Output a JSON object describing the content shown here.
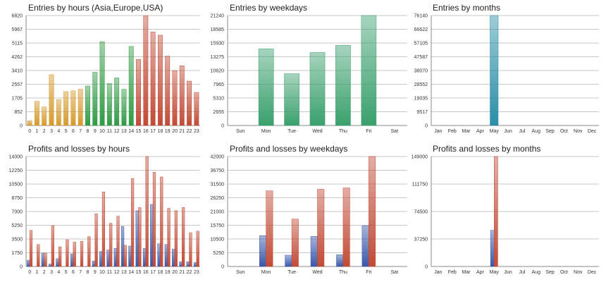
{
  "colors": {
    "orange": "#d69a2c",
    "green": "#2f9a43",
    "red": "#c24a35",
    "teal_green": "#3aa06d",
    "teal": "#2a8ea8",
    "blue": "#3a58a8",
    "grid": "#c8c8c8"
  },
  "chart_data": [
    {
      "type": "bar",
      "title": "Entries by hours (Asia,Europe,USA)",
      "categories": [
        "0",
        "1",
        "2",
        "3",
        "4",
        "5",
        "6",
        "7",
        "8",
        "9",
        "10",
        "11",
        "12",
        "13",
        "14",
        "15",
        "16",
        "17",
        "18",
        "19",
        "20",
        "21",
        "22",
        "23"
      ],
      "values": [
        300,
        1500,
        1150,
        3150,
        1600,
        2100,
        2150,
        2250,
        2450,
        3300,
        5200,
        2600,
        2950,
        2250,
        4900,
        4100,
        6800,
        5800,
        5600,
        4300,
        3400,
        3700,
        2750,
        2050
      ],
      "bar_colors": [
        "orange",
        "orange",
        "orange",
        "orange",
        "orange",
        "orange",
        "orange",
        "orange",
        "green",
        "green",
        "green",
        "green",
        "green",
        "green",
        "green",
        "red",
        "red",
        "red",
        "red",
        "red",
        "red",
        "red",
        "red",
        "red"
      ],
      "yticks": [
        "0",
        "852",
        "1705",
        "2557",
        "3410",
        "4262",
        "5115",
        "5967",
        "6820"
      ],
      "ylim": [
        0,
        6820
      ]
    },
    {
      "type": "bar",
      "title": "Entries by weekdays",
      "categories": [
        "Sun",
        "Mon",
        "Tue",
        "Wed",
        "Thu",
        "Fri",
        "Sat"
      ],
      "values": [
        0,
        14800,
        10000,
        14100,
        15500,
        21240,
        0
      ],
      "color": "teal_green",
      "yticks": [
        "0",
        "2655",
        "5310",
        "7965",
        "10620",
        "13275",
        "15930",
        "18585",
        "21240"
      ],
      "ylim": [
        0,
        21240
      ]
    },
    {
      "type": "bar",
      "title": "Entries by months",
      "categories": [
        "Jan",
        "Feb",
        "Mar",
        "Apr",
        "May",
        "Jun",
        "Jul",
        "Aug",
        "Sep",
        "Oct",
        "Nov",
        "Dec"
      ],
      "values": [
        0,
        0,
        0,
        0,
        76140,
        0,
        0,
        0,
        0,
        0,
        0,
        0
      ],
      "color": "teal",
      "yticks": [
        "0",
        "9517",
        "19035",
        "28552",
        "38070",
        "47587",
        "57105",
        "66622",
        "76140"
      ],
      "ylim": [
        0,
        76140
      ]
    },
    {
      "type": "bar",
      "title": "Profits and losses by hours",
      "categories": [
        "0",
        "1",
        "2",
        "3",
        "4",
        "5",
        "6",
        "7",
        "8",
        "9",
        "10",
        "11",
        "12",
        "13",
        "14",
        "15",
        "16",
        "17",
        "18",
        "19",
        "20",
        "21",
        "22",
        "23"
      ],
      "series": [
        {
          "values": [
            800,
            0,
            1700,
            300,
            1000,
            0,
            1600,
            0,
            0,
            700,
            1900,
            2100,
            2300,
            5100,
            2600,
            7100,
            2300,
            7900,
            2900,
            2800,
            2200,
            600,
            600,
            500
          ],
          "color": "blue"
        },
        {
          "values": [
            4600,
            2800,
            1700,
            5200,
            2500,
            3400,
            3100,
            3200,
            3800,
            6700,
            9500,
            5500,
            6400,
            2700,
            11200,
            7500,
            14000,
            12000,
            11400,
            7400,
            7100,
            7500,
            4300,
            4500
          ],
          "color": "red"
        }
      ],
      "yticks": [
        "0",
        "1750",
        "3500",
        "5250",
        "7000",
        "8750",
        "10500",
        "12250",
        "14000"
      ],
      "ylim": [
        0,
        14000
      ]
    },
    {
      "type": "bar",
      "title": "Profits and losses by weekdays",
      "categories": [
        "Sun",
        "Mon",
        "Tue",
        "Wed",
        "Thu",
        "Fri",
        "Sat"
      ],
      "series": [
        {
          "values": [
            0,
            11800,
            4300,
            11500,
            4500,
            15600,
            0
          ],
          "color": "blue"
        },
        {
          "values": [
            0,
            28900,
            18100,
            29500,
            30000,
            42000,
            0
          ],
          "color": "red"
        }
      ],
      "yticks": [
        "0",
        "5250",
        "10500",
        "15750",
        "21000",
        "26250",
        "31500",
        "36750",
        "42000"
      ],
      "ylim": [
        0,
        42000
      ]
    },
    {
      "type": "bar",
      "title": "Profits and losses by months",
      "categories": [
        "Jan",
        "Feb",
        "Mar",
        "Apr",
        "May",
        "Jun",
        "Jul",
        "Aug",
        "Sep",
        "Oct",
        "Nov",
        "Dec"
      ],
      "series": [
        {
          "values": [
            0,
            0,
            0,
            0,
            49000,
            0,
            0,
            0,
            0,
            0,
            0,
            0
          ],
          "color": "blue"
        },
        {
          "values": [
            0,
            0,
            0,
            0,
            149000,
            0,
            0,
            0,
            0,
            0,
            0,
            0
          ],
          "color": "red"
        }
      ],
      "yticks": [
        "0",
        "37250",
        "74500",
        "111750",
        "149000"
      ],
      "ylim": [
        0,
        149000
      ]
    }
  ]
}
